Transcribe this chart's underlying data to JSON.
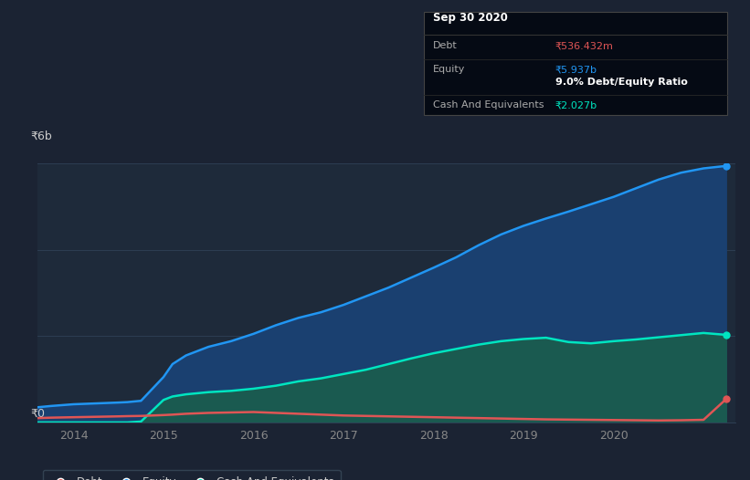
{
  "bg_color": "#1b2333",
  "plot_bg_color": "#1e2a3a",
  "grid_color": "#2e3f55",
  "title_font_color": "#cccccc",
  "tick_color": "#888888",
  "y_label": "₹6b",
  "y0_label": "₹0",
  "y_max": 6.0,
  "x_min": 2013.6,
  "x_max": 2021.35,
  "debt_color": "#e05555",
  "equity_color": "#2196f3",
  "cash_color": "#00e5c0",
  "equity_fill": "#1a4070",
  "cash_fill": "#1a5a50",
  "line_width": 1.8,
  "tooltip_bg": "#050a14",
  "tooltip_border": "#444444",
  "tooltip_title": "Sep 30 2020",
  "tooltip_debt_label": "Debt",
  "tooltip_debt_value": "₹536.432m",
  "tooltip_equity_label": "Equity",
  "tooltip_equity_value": "₹5.937b",
  "tooltip_ratio_label": "9.0% Debt/Equity Ratio",
  "tooltip_cash_label": "Cash And Equivalents",
  "tooltip_cash_value": "₹2.027b",
  "x_ticks": [
    2014,
    2015,
    2016,
    2017,
    2018,
    2019,
    2020
  ],
  "x_tick_labels": [
    "2014",
    "2015",
    "2016",
    "2017",
    "2018",
    "2019",
    "2020"
  ],
  "legend_debt": "Debt",
  "legend_equity": "Equity",
  "legend_cash": "Cash And Equivalents",
  "years": [
    2013.6,
    2013.75,
    2014.0,
    2014.25,
    2014.5,
    2014.6,
    2014.75,
    2015.0,
    2015.1,
    2015.25,
    2015.5,
    2015.75,
    2016.0,
    2016.25,
    2016.5,
    2016.75,
    2017.0,
    2017.25,
    2017.5,
    2017.75,
    2018.0,
    2018.25,
    2018.5,
    2018.75,
    2019.0,
    2019.25,
    2019.5,
    2019.75,
    2020.0,
    2020.25,
    2020.5,
    2020.75,
    2021.0,
    2021.25
  ],
  "equity": [
    0.35,
    0.38,
    0.42,
    0.44,
    0.46,
    0.47,
    0.5,
    1.05,
    1.35,
    1.55,
    1.75,
    1.88,
    2.05,
    2.25,
    2.42,
    2.55,
    2.72,
    2.92,
    3.12,
    3.35,
    3.58,
    3.82,
    4.1,
    4.35,
    4.55,
    4.72,
    4.88,
    5.05,
    5.22,
    5.42,
    5.62,
    5.78,
    5.88,
    5.937
  ],
  "cash": [
    0.0,
    0.0,
    0.0,
    0.0,
    0.0,
    0.0,
    0.02,
    0.52,
    0.6,
    0.65,
    0.7,
    0.73,
    0.78,
    0.85,
    0.95,
    1.02,
    1.12,
    1.22,
    1.35,
    1.48,
    1.6,
    1.7,
    1.8,
    1.88,
    1.93,
    1.96,
    1.86,
    1.83,
    1.88,
    1.92,
    1.97,
    2.02,
    2.07,
    2.027
  ],
  "debt": [
    0.1,
    0.11,
    0.12,
    0.13,
    0.14,
    0.145,
    0.15,
    0.17,
    0.18,
    0.2,
    0.22,
    0.23,
    0.24,
    0.22,
    0.2,
    0.18,
    0.16,
    0.15,
    0.14,
    0.13,
    0.12,
    0.11,
    0.1,
    0.09,
    0.08,
    0.07,
    0.065,
    0.06,
    0.055,
    0.05,
    0.045,
    0.05,
    0.06,
    0.5364
  ]
}
